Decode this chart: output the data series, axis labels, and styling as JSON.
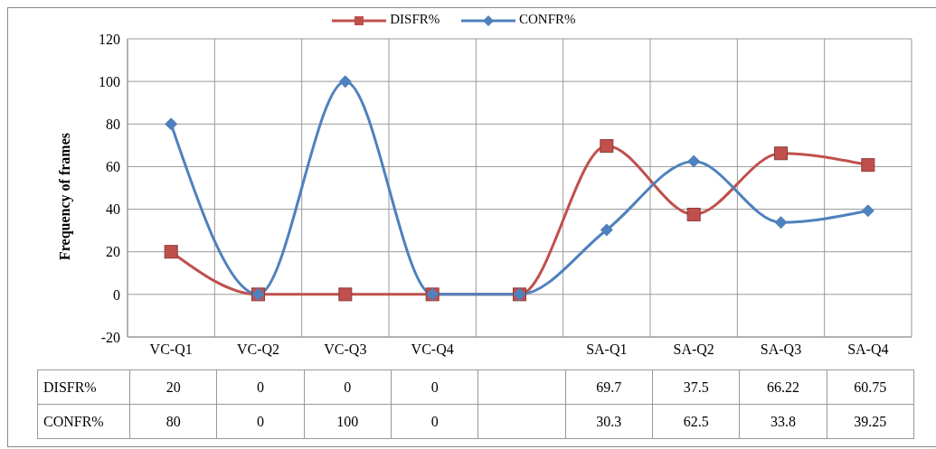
{
  "chart_data": {
    "type": "line",
    "ylabel": "Frequency of frames",
    "categories": [
      "VC-Q1",
      "VC-Q2",
      "VC-Q3",
      "VC-Q4",
      null,
      "SA-Q1",
      "SA-Q2",
      "SA-Q3",
      "SA-Q4"
    ],
    "series": [
      {
        "name": "DISFR%",
        "color": "#c0504d",
        "marker": "square",
        "values": [
          20,
          0,
          0,
          0,
          0,
          69.7,
          37.5,
          66.22,
          60.75
        ],
        "value_labels": [
          "20",
          "0",
          "0",
          "0",
          null,
          "69.7",
          "37.5",
          "66.22",
          "60.75"
        ]
      },
      {
        "name": "CONFR%",
        "color": "#4f81bd",
        "marker": "diamond",
        "values": [
          80,
          0,
          100,
          0,
          0,
          30.3,
          62.5,
          33.8,
          39.25
        ],
        "value_labels": [
          "80",
          "0",
          "100",
          "0",
          null,
          "30.3",
          "62.5",
          "33.8",
          "39.25"
        ]
      }
    ],
    "ylim": [
      -20,
      120
    ],
    "yticks": [
      -20,
      0,
      20,
      40,
      60,
      80,
      100,
      120
    ],
    "grid": true,
    "legend": "top"
  }
}
